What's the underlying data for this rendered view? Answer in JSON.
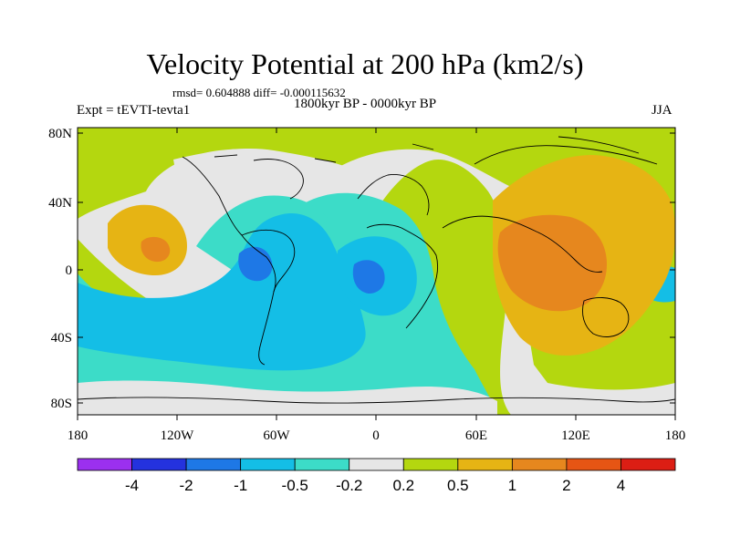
{
  "title": "Velocity Potential at 200 hPa (km2/s)",
  "stats": "rmsd= 0.604888 diff= -0.000115632",
  "period": "1800kyr BP - 0000kyr BP",
  "experiment": "Expt = tEVTI-tevta1",
  "season": "JJA",
  "lat_ticks": [
    "80N",
    "40N",
    "0",
    "40S",
    "80S"
  ],
  "lon_ticks": [
    "180",
    "120W",
    "60W",
    "0",
    "60E",
    "120E",
    "180"
  ],
  "colorbar": {
    "labels": [
      "-4",
      "-2",
      "-1",
      "-0.5",
      "-0.2",
      "0.2",
      "0.5",
      "1",
      "2",
      "4"
    ],
    "colors": [
      "#9b30ef",
      "#2432de",
      "#1e78e6",
      "#14bee6",
      "#3cdcc8",
      "#e6e6e6",
      "#b4d70f",
      "#e6b414",
      "#e6871e",
      "#e65514",
      "#dc1e14"
    ]
  },
  "palette": {
    "ocean_cool": "#3cdcc8",
    "cool_mid": "#14bee6",
    "cool_strong": "#1e78e6",
    "neutral": "#e6e6e6",
    "warm_weak": "#b4d70f",
    "warm_mid": "#e6b414",
    "warm_strong": "#e6871e"
  }
}
